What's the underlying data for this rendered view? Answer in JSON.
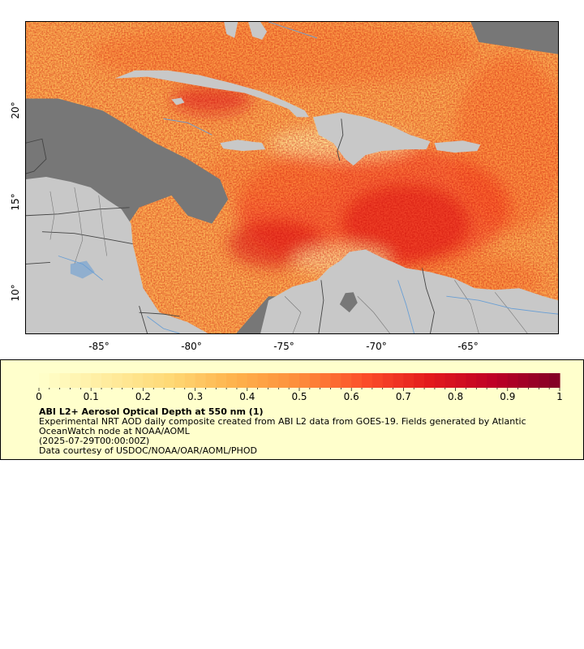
{
  "map": {
    "lon_range": [
      -89,
      -60
    ],
    "lat_range": [
      8,
      25
    ],
    "lon_labels": [
      "-85°",
      "-80°",
      "-75°",
      "-70°",
      "-65°"
    ],
    "lat_labels": [
      "20°",
      "15°",
      "10°"
    ],
    "colors": {
      "water_no_data": "#777777",
      "land": "#c8c8c8",
      "borders": "#444444",
      "rivers": "#6a9fd4"
    }
  },
  "legend": {
    "colorbar_ticks": [
      "0",
      "0.1",
      "0.2",
      "0.3",
      "0.4",
      "0.5",
      "0.6",
      "0.7",
      "0.8",
      "0.9",
      "1"
    ],
    "colormap": [
      "#ffffcc",
      "#ffeda0",
      "#fed976",
      "#feb24c",
      "#fd8d3c",
      "#fc4e2a",
      "#e31a1c",
      "#bd0026",
      "#800026"
    ],
    "title": "ABI L2+ Aerosol Optical Depth at 550 nm (1)",
    "description": "Experimental NRT AOD daily composite created from ABI L2 data from GOES-19. Fields generated by Atlantic OceanWatch node at NOAA/AOML",
    "date": "(2025-07-29T00:00:00Z)",
    "credit": "Data courtesy of USDOC/NOAA/OAR/AOML/PHOD"
  }
}
